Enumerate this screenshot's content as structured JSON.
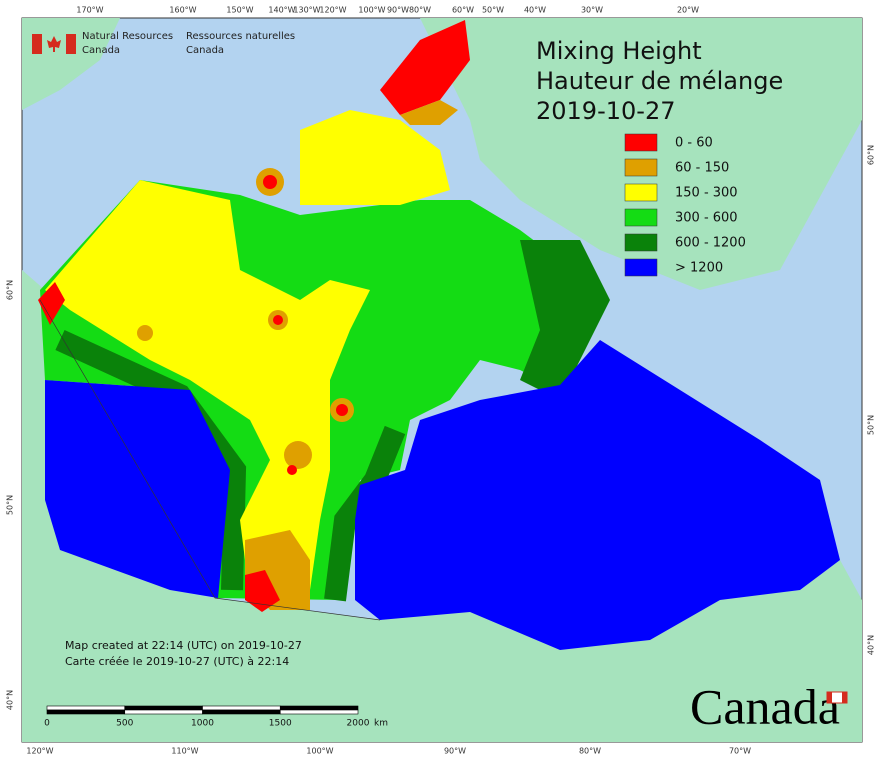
{
  "header": {
    "org_en": [
      "Natural Resources",
      "Canada"
    ],
    "org_fr": [
      "Ressources naturelles",
      "Canada"
    ]
  },
  "title": [
    "Mixing Height",
    "Hauteur de mélange",
    "2019-10-27"
  ],
  "legend": [
    {
      "label": "0 - 60",
      "color": "#ff0000"
    },
    {
      "label": "60 - 150",
      "color": "#dfa000"
    },
    {
      "label": "150 - 300",
      "color": "#ffff00"
    },
    {
      "label": "300 - 600",
      "color": "#14dc14"
    },
    {
      "label": "600 - 1200",
      "color": "#0a820a"
    },
    {
      "label": "> 1200",
      "color": "#0000ff"
    }
  ],
  "notes": [
    "Map created at 22:14 (UTC) on 2019-10-27",
    "Carte créée le 2019-10-27 (UTC) à 22:14"
  ],
  "scale_bar": {
    "ticks": [
      "0",
      "500",
      "1000",
      "1500",
      "2000"
    ],
    "unit": "km"
  },
  "graticule": {
    "top": [
      "170°W",
      "160°W",
      "150°W",
      "140°W",
      "130°W",
      "120°W",
      "100°W",
      "90°W",
      "80°W",
      "60°W",
      "50°W",
      "40°W",
      "30°W",
      "20°W"
    ],
    "bottom": [
      "120°W",
      "110°W",
      "100°W",
      "90°W",
      "80°W",
      "70°W"
    ],
    "left": [
      "60°N",
      "50°N",
      "40°N"
    ],
    "right": [
      "60°N",
      "50°N",
      "40°N"
    ]
  },
  "wordmark": "Canada"
}
